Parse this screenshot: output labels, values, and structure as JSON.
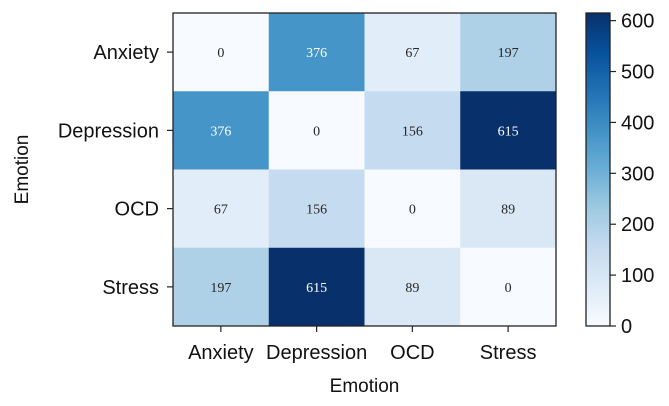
{
  "chart_data": {
    "type": "heatmap",
    "title": "",
    "xlabel": "Emotion",
    "ylabel": "Emotion",
    "x_categories": [
      "Anxiety",
      "Depression",
      "OCD",
      "Stress"
    ],
    "y_categories": [
      "Anxiety",
      "Depression",
      "OCD",
      "Stress"
    ],
    "values": [
      [
        0,
        376,
        67,
        197
      ],
      [
        376,
        0,
        156,
        615
      ],
      [
        67,
        156,
        0,
        89
      ],
      [
        197,
        615,
        89,
        0
      ]
    ],
    "colorbar": {
      "min": 0,
      "max": 615,
      "ticks": [
        0,
        100,
        200,
        300,
        400,
        500,
        600
      ],
      "colormap": "Blues",
      "colors": [
        "#f7fbff",
        "#deebf7",
        "#c6dbef",
        "#9ecae1",
        "#6baed6",
        "#4292c6",
        "#2171b5",
        "#08519c",
        "#08306b"
      ]
    },
    "grid": false,
    "legend": "right"
  }
}
